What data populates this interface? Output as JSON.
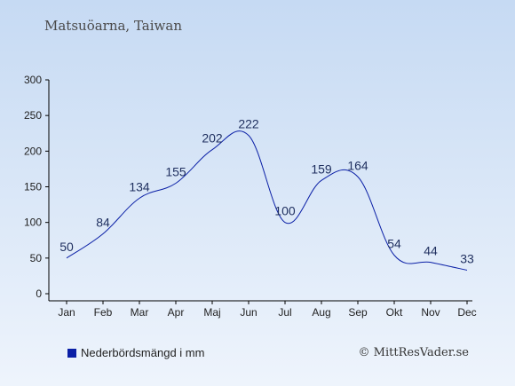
{
  "header": {
    "title": "Matsuöarna, Taiwan"
  },
  "legend": {
    "label": "Nederbördsmängd i mm"
  },
  "footer": {
    "copyright": "© MittResVader.se"
  },
  "colors": {
    "series": "#0a1fa6",
    "axis": "#000000",
    "label": "#222222"
  },
  "chart_data": {
    "type": "line",
    "title": "Matsuöarna, Taiwan",
    "xlabel": "",
    "ylabel": "",
    "categories": [
      "Jan",
      "Feb",
      "Mar",
      "Apr",
      "Maj",
      "Jun",
      "Jul",
      "Aug",
      "Sep",
      "Okt",
      "Nov",
      "Dec"
    ],
    "series": [
      {
        "name": "Nederbördsmängd i mm",
        "values": [
          50,
          84,
          134,
          155,
          202,
          222,
          100,
          159,
          164,
          54,
          44,
          33
        ]
      }
    ],
    "ylim": [
      0,
      300
    ],
    "yticks": [
      0,
      50,
      100,
      150,
      200,
      250,
      300
    ],
    "grid": false,
    "legend": "bottom-left",
    "data_labels": true
  }
}
